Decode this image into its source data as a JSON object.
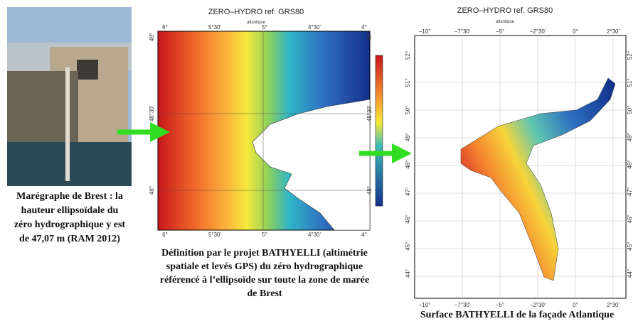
{
  "photo": {
    "caption": [
      "Marégraphe de Brest : la",
      "hauteur ellipsoïdale du",
      "zéro hydrographique y est",
      "de 47,07 m (RAM 2012)"
    ]
  },
  "map_left": {
    "title": "ZERO–HYDRO ref. GRS80",
    "subtitle": "atlantique",
    "lon_labels": [
      "6°",
      "5°30'",
      "5°",
      "4°30'",
      "4°"
    ],
    "lat_labels": [
      "49°",
      "48°30'",
      "48°"
    ],
    "caption": [
      "Définition par le projet BATHYELLI (altimétrie",
      "spatiale et levés GPS) du zéro hydrographique",
      "référencé à l’ellipsoïde sur toute la zone de marée",
      "de Brest"
    ]
  },
  "map_right": {
    "title": "ZERO–HYDRO ref. GRS80",
    "subtitle": "atlantique",
    "lon_labels": [
      "−10°",
      "−7°30'",
      "−5°",
      "−2°30'",
      "0°",
      "2°30'"
    ],
    "lat_labels": [
      "52°",
      "51°",
      "50°",
      "49°",
      "48°",
      "47°",
      "46°",
      "45°",
      "44°"
    ],
    "caption": [
      "Surface BATHYELLI de la façade Atlantique"
    ]
  }
}
